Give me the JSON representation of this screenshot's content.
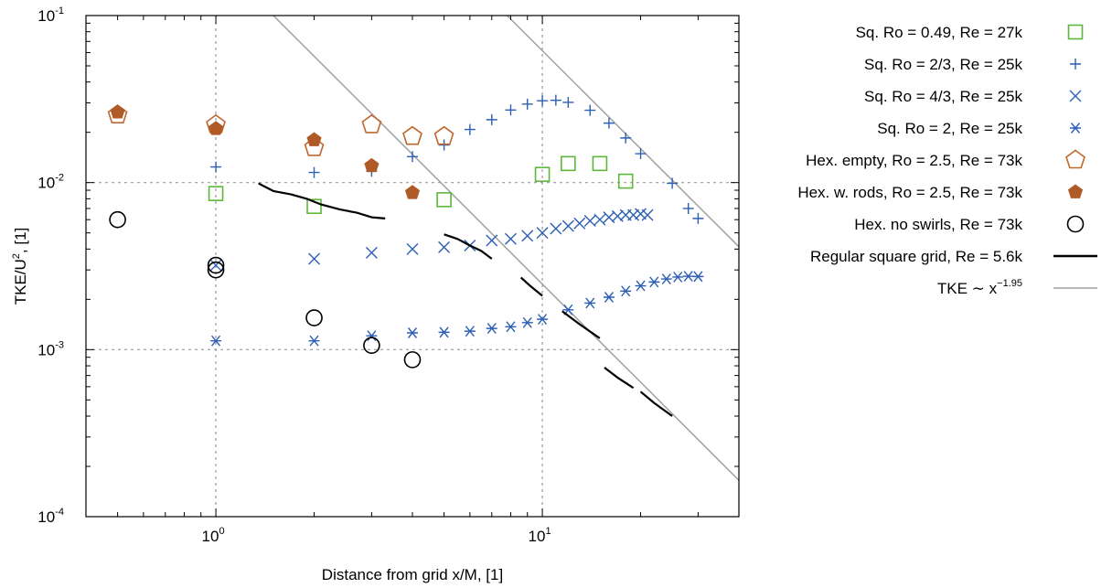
{
  "chart_data": {
    "type": "scatter",
    "x_scale": "log",
    "y_scale": "log",
    "xlabel": "Distance from grid x/M, [1]",
    "ylabel": {
      "base": "TKE/U",
      "sup": "2",
      "rest": ", [1]"
    },
    "xlim": [
      0.4,
      40
    ],
    "ylim": [
      0.0001,
      0.1
    ],
    "grid": true,
    "legend_position": "right",
    "x_ticks": [
      {
        "value": 1,
        "base": "10",
        "exp": "0"
      },
      {
        "value": 10,
        "base": "10",
        "exp": "1"
      }
    ],
    "y_ticks": [
      {
        "value": 0.0001,
        "base": "10",
        "exp": "-4"
      },
      {
        "value": 0.001,
        "base": "10",
        "exp": "-3"
      },
      {
        "value": 0.01,
        "base": "10",
        "exp": "-2"
      },
      {
        "value": 0.1,
        "base": "10",
        "exp": "-1"
      }
    ],
    "series": [
      {
        "name": "Sq. Ro = 0.49, Re = 27k",
        "marker": "square",
        "color": "#5cb83b",
        "x": [
          1,
          2,
          5,
          10,
          12,
          15,
          18
        ],
        "y": [
          0.0086,
          0.0072,
          0.0079,
          0.0112,
          0.013,
          0.013,
          0.0102
        ]
      },
      {
        "name": "Sq. Ro = 2/3, Re = 25k",
        "marker": "plus",
        "color": "#2d5fb4",
        "x": [
          1,
          2,
          3,
          4,
          5,
          6,
          7,
          8,
          9,
          10,
          11,
          12,
          14,
          16,
          18,
          20,
          25,
          28,
          30
        ],
        "y": [
          0.0124,
          0.0115,
          0.0117,
          0.0143,
          0.0168,
          0.0208,
          0.0238,
          0.0272,
          0.0295,
          0.0309,
          0.0311,
          0.0302,
          0.0271,
          0.0227,
          0.0185,
          0.0149,
          0.0099,
          0.007,
          0.0061
        ]
      },
      {
        "name": "Sq. Ro = 4/3, Re = 25k",
        "marker": "x",
        "color": "#2d5fb4",
        "x": [
          1,
          2,
          3,
          4,
          5,
          6,
          7,
          8,
          9,
          10,
          11,
          12,
          13,
          14,
          15,
          16,
          17,
          18,
          19,
          20,
          21
        ],
        "y": [
          0.0032,
          0.0035,
          0.0038,
          0.004,
          0.0041,
          0.0042,
          0.0045,
          0.0046,
          0.0048,
          0.005,
          0.0053,
          0.0055,
          0.0057,
          0.0059,
          0.006,
          0.0062,
          0.0063,
          0.0064,
          0.0064,
          0.0065,
          0.0064
        ]
      },
      {
        "name": "Sq. Ro = 2, Re = 25k",
        "marker": "asterisk",
        "color": "#2d5fb4",
        "x": [
          1,
          2,
          3,
          4,
          5,
          6,
          7,
          8,
          9,
          10,
          12,
          14,
          16,
          18,
          20,
          22,
          24,
          26,
          28,
          30
        ],
        "y": [
          0.00113,
          0.00113,
          0.00121,
          0.00126,
          0.00127,
          0.00129,
          0.00134,
          0.00137,
          0.00145,
          0.00152,
          0.00173,
          0.0019,
          0.00206,
          0.00224,
          0.00241,
          0.00254,
          0.00265,
          0.00272,
          0.00275,
          0.00274
        ]
      },
      {
        "name": "Hex. empty, Ro = 2.5, Re = 73k",
        "marker": "pentagon-open",
        "color": "#c0672f",
        "x": [
          0.5,
          1,
          2,
          3,
          4,
          5
        ],
        "y": [
          0.0254,
          0.0222,
          0.0162,
          0.0222,
          0.0189,
          0.0189
        ]
      },
      {
        "name": "Hex. w. rods, Ro = 2.5, Re = 73k",
        "marker": "pentagon-filled",
        "color": "#b05a28",
        "x": [
          0.5,
          1,
          2,
          3,
          4
        ],
        "y": [
          0.0264,
          0.021,
          0.018,
          0.0126,
          0.0087
        ]
      },
      {
        "name": "Hex. no swirls, Re = 73k",
        "marker": "circle-open",
        "color": "#000000",
        "x": [
          0.5,
          1,
          1,
          2,
          3,
          4
        ],
        "y": [
          0.006,
          0.0032,
          0.003,
          0.00155,
          0.00106,
          0.00087
        ]
      },
      {
        "name": "Regular square grid, Re = 5.6k",
        "marker": "line",
        "color": "#000000",
        "segments": [
          {
            "x": [
              1.35,
              1.5,
              1.7,
              1.9,
              2.1,
              2.4,
              2.7,
              3.0,
              3.3
            ],
            "y": [
              0.0099,
              0.0089,
              0.0085,
              0.008,
              0.0074,
              0.0069,
              0.0066,
              0.0062,
              0.0061
            ]
          },
          {
            "x": [
              5.0,
              5.5,
              6.0,
              6.5,
              7.0
            ],
            "y": [
              0.0049,
              0.0046,
              0.0042,
              0.0039,
              0.0035
            ]
          },
          {
            "x": [
              8.6,
              9.2,
              10.0
            ],
            "y": [
              0.0027,
              0.0024,
              0.0021
            ]
          },
          {
            "x": [
              11.5,
              13.0,
              15.0
            ],
            "y": [
              0.0017,
              0.00142,
              0.00117
            ]
          },
          {
            "x": [
              15.5,
              17.0,
              19.0
            ],
            "y": [
              0.00078,
              0.00068,
              0.00059
            ]
          },
          {
            "x": [
              20.0,
              22.0,
              25.0
            ],
            "y": [
              0.00056,
              0.00048,
              0.0004
            ]
          }
        ]
      },
      {
        "name": "TKE ~ x^-1.95",
        "label": {
          "base": "TKE ∼ x",
          "sup": "−1.95"
        },
        "marker": "line",
        "color": "#a0a0a0",
        "lines": [
          {
            "x": [
              1.5,
              40
            ],
            "y": [
              0.1,
              0.000165
            ]
          },
          {
            "x": [
              7.8,
              40
            ],
            "y": [
              0.1,
              0.00413
            ]
          }
        ]
      }
    ]
  }
}
